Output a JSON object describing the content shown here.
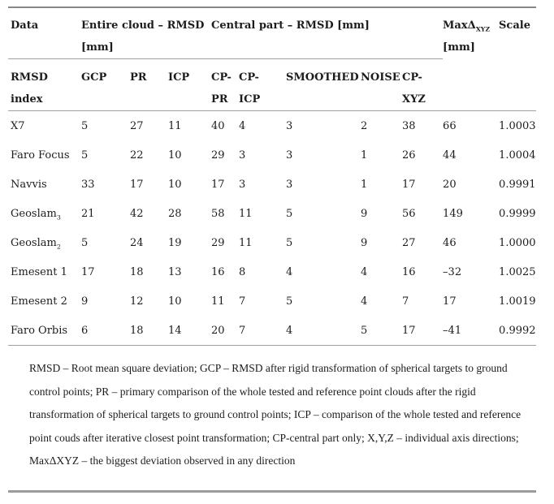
{
  "table": {
    "header_row1": {
      "data": "Data",
      "entire_cloud": "Entire cloud – RMSD\n[mm]",
      "central_part": "Central part – RMSD [mm]",
      "maxd_prefix": "MaxΔ",
      "maxd_sub": "XYZ",
      "maxd_unit": "[mm]",
      "scale": "Scale"
    },
    "header_row2": {
      "rmsd_index": "RMSD\nindex",
      "gcp": "GCP",
      "pr": "PR",
      "icp": "ICP",
      "cp_pr": "CP-\nPR",
      "cp_icp": "CP-\nICP",
      "smoothed": "SMOOTHED",
      "noise": "NOISE",
      "cp_xyz": "CP-\nXYZ"
    },
    "rows": [
      {
        "name": "X7",
        "name_sub": "",
        "values": [
          "5",
          "27",
          "11",
          "40",
          "4",
          "3",
          "2",
          "38",
          "66",
          "1.0003"
        ]
      },
      {
        "name": "Faro Focus",
        "name_sub": "",
        "values": [
          "5",
          "22",
          "10",
          "29",
          "3",
          "3",
          "1",
          "26",
          "44",
          "1.0004"
        ]
      },
      {
        "name": "Navvis",
        "name_sub": "",
        "values": [
          "33",
          "17",
          "10",
          "17",
          "3",
          "3",
          "1",
          "17",
          "20",
          "0.9991"
        ]
      },
      {
        "name": "Geoslam",
        "name_sub": "3",
        "values": [
          "21",
          "42",
          "28",
          "58",
          "11",
          "5",
          "9",
          "56",
          "149",
          "0.9999"
        ]
      },
      {
        "name": "Geoslam",
        "name_sub": "2",
        "values": [
          "5",
          "24",
          "19",
          "29",
          "11",
          "5",
          "9",
          "27",
          "46",
          "1.0000"
        ]
      },
      {
        "name": "Emesent 1",
        "name_sub": "",
        "values": [
          "17",
          "18",
          "13",
          "16",
          "8",
          "4",
          "4",
          "16",
          "–32",
          "1.0025"
        ]
      },
      {
        "name": "Emesent 2",
        "name_sub": "",
        "values": [
          "9",
          "12",
          "10",
          "11",
          "7",
          "5",
          "4",
          "7",
          "17",
          "1.0019"
        ]
      },
      {
        "name": "Faro Orbis",
        "name_sub": "",
        "values": [
          "6",
          "18",
          "14",
          "20",
          "7",
          "4",
          "5",
          "17",
          "–41",
          "0.9992"
        ]
      }
    ]
  },
  "footnote": {
    "text": "RMSD – Root mean square deviation; GCP – RMSD after rigid transformation of spherical targets to ground control points; PR – primary comparison of the whole tested and reference point clouds after the rigid transformation of spherical targets to ground control points; ICP – comparison of the whole tested and reference point couds after iterative closest point transformation; CP-central part only; X,Y,Z – individual axis directions; MaxΔXYZ – the biggest deviation observed in any direction"
  },
  "colors": {
    "text": "#1c1c1e",
    "rule_heavy_top": "#878787",
    "rule_heavy_bottom": "#9c9c9c",
    "rule_light": "#a0a0a0",
    "background": "#ffffff"
  }
}
